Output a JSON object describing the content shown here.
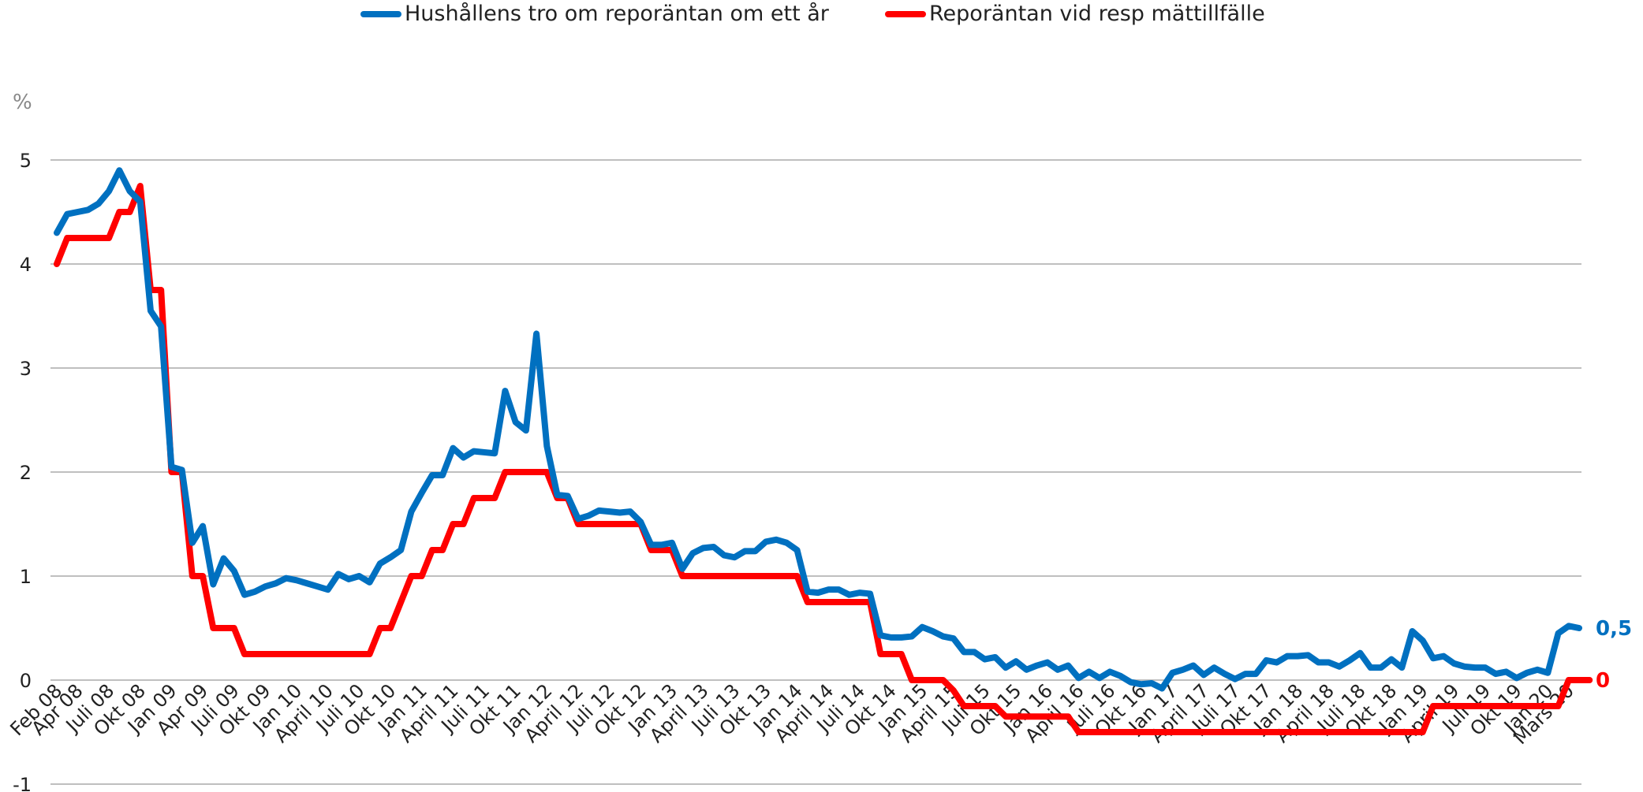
{
  "chart_data": {
    "type": "line",
    "title": "",
    "xlabel": "",
    "ylabel": "%",
    "ylim": [
      -1,
      5
    ],
    "yticks": [
      -1,
      0,
      1,
      2,
      3,
      4,
      5
    ],
    "ytick_labels": [
      "-1",
      "0",
      "1",
      "2",
      "3",
      "4",
      "5"
    ],
    "grid": true,
    "legend_position": "top-center",
    "x_tick_labels": [
      "Feb 08",
      "Apr 08",
      "Juli 08",
      "Okt 08",
      "Jan 09",
      "Apr 09",
      "Juli 09",
      "Okt 09",
      "Jan 10",
      "April 10",
      "Juli 10",
      "Okt 10",
      "Jan 11",
      "April 11",
      "Juli 11",
      "Okt 11",
      "Jan 12",
      "April 12",
      "Juli 12",
      "Okt 12",
      "Jan 13",
      "April 13",
      "Juli 13",
      "Okt 13",
      "Jan 14",
      "April 14",
      "Juli 14",
      "Okt 14",
      "Jan 15",
      "April 15",
      "Juli 15",
      "Okt 15",
      "Jan 16",
      "April 16",
      "Juli 16",
      "Okt 16",
      "Jan 17",
      "April 17",
      "Juli 17",
      "Okt 17",
      "Jan 18",
      "April 18",
      "Juli 18",
      "Okt 18",
      "Jan 19",
      "April 19",
      "Juli 19",
      "Okt 19",
      "Jan 20",
      "Mars 20"
    ],
    "x_tick_months": [
      0,
      2,
      5,
      8,
      11,
      14,
      17,
      20,
      23,
      26,
      29,
      32,
      35,
      38,
      41,
      44,
      47,
      50,
      53,
      56,
      59,
      62,
      65,
      68,
      71,
      74,
      77,
      80,
      83,
      86,
      89,
      92,
      95,
      98,
      101,
      104,
      107,
      110,
      113,
      116,
      119,
      122,
      125,
      128,
      131,
      134,
      137,
      140,
      143,
      145
    ],
    "x_start": "Feb 08",
    "series": [
      {
        "name": "Hushållens tro om reporäntan om ett år",
        "color": "#0070C0",
        "end_label": "0,5",
        "values": [
          4.3,
          4.48,
          4.5,
          4.52,
          4.58,
          4.7,
          4.9,
          4.7,
          4.6,
          3.55,
          3.4,
          2.05,
          2.02,
          1.32,
          1.48,
          0.92,
          1.17,
          1.05,
          0.82,
          0.85,
          0.9,
          0.93,
          0.98,
          0.96,
          0.93,
          0.9,
          0.87,
          1.02,
          0.97,
          1.0,
          0.94,
          1.12,
          1.18,
          1.25,
          1.62,
          1.8,
          1.97,
          1.97,
          2.23,
          2.14,
          2.2,
          2.19,
          2.18,
          2.78,
          2.48,
          2.4,
          3.33,
          2.25,
          1.78,
          1.77,
          1.55,
          1.58,
          1.63,
          1.62,
          1.61,
          1.62,
          1.52,
          1.3,
          1.3,
          1.32,
          1.07,
          1.22,
          1.27,
          1.28,
          1.2,
          1.18,
          1.24,
          1.24,
          1.33,
          1.35,
          1.32,
          1.25,
          0.85,
          0.84,
          0.87,
          0.87,
          0.82,
          0.84,
          0.83,
          0.43,
          0.41,
          0.41,
          0.42,
          0.51,
          0.47,
          0.42,
          0.4,
          0.27,
          0.27,
          0.2,
          0.22,
          0.12,
          0.18,
          0.1,
          0.14,
          0.17,
          0.1,
          0.14,
          0.02,
          0.08,
          0.02,
          0.08,
          0.04,
          -0.02,
          -0.04,
          -0.03,
          -0.08,
          0.07,
          0.1,
          0.14,
          0.05,
          0.12,
          0.06,
          0.01,
          0.06,
          0.06,
          0.19,
          0.17,
          0.23,
          0.23,
          0.24,
          0.17,
          0.17,
          0.13,
          0.19,
          0.26,
          0.12,
          0.12,
          0.2,
          0.12,
          0.47,
          0.38,
          0.21,
          0.23,
          0.16,
          0.13,
          0.12,
          0.12,
          0.06,
          0.08,
          0.02,
          0.07,
          0.1,
          0.07,
          0.45,
          0.52,
          0.5
        ]
      },
      {
        "name": "Reporäntan vid resp mättillfälle",
        "color": "#FF0000",
        "end_label": "0",
        "values": [
          4.0,
          4.25,
          4.25,
          4.25,
          4.25,
          4.25,
          4.5,
          4.5,
          4.75,
          3.75,
          3.75,
          2.0,
          2.0,
          1.0,
          1.0,
          0.5,
          0.5,
          0.5,
          0.25,
          0.25,
          0.25,
          0.25,
          0.25,
          0.25,
          0.25,
          0.25,
          0.25,
          0.25,
          0.25,
          0.25,
          0.25,
          0.5,
          0.5,
          0.75,
          1.0,
          1.0,
          1.25,
          1.25,
          1.5,
          1.5,
          1.75,
          1.75,
          1.75,
          2.0,
          2.0,
          2.0,
          2.0,
          2.0,
          1.75,
          1.75,
          1.5,
          1.5,
          1.5,
          1.5,
          1.5,
          1.5,
          1.5,
          1.25,
          1.25,
          1.25,
          1.0,
          1.0,
          1.0,
          1.0,
          1.0,
          1.0,
          1.0,
          1.0,
          1.0,
          1.0,
          1.0,
          1.0,
          0.75,
          0.75,
          0.75,
          0.75,
          0.75,
          0.75,
          0.75,
          0.25,
          0.25,
          0.25,
          0.0,
          0.0,
          0.0,
          0.0,
          -0.1,
          -0.25,
          -0.25,
          -0.25,
          -0.25,
          -0.35,
          -0.35,
          -0.35,
          -0.35,
          -0.35,
          -0.35,
          -0.35,
          -0.5,
          -0.5,
          -0.5,
          -0.5,
          -0.5,
          -0.5,
          -0.5,
          -0.5,
          -0.5,
          -0.5,
          -0.5,
          -0.5,
          -0.5,
          -0.5,
          -0.5,
          -0.5,
          -0.5,
          -0.5,
          -0.5,
          -0.5,
          -0.5,
          -0.5,
          -0.5,
          -0.5,
          -0.5,
          -0.5,
          -0.5,
          -0.5,
          -0.5,
          -0.5,
          -0.5,
          -0.5,
          -0.5,
          -0.5,
          -0.25,
          -0.25,
          -0.25,
          -0.25,
          -0.25,
          -0.25,
          -0.25,
          -0.25,
          -0.25,
          -0.25,
          -0.25,
          -0.25,
          -0.25,
          0.0,
          0.0,
          0.0
        ]
      }
    ]
  },
  "colors": {
    "grid": "#BFBFBF",
    "axis_text": "#222222",
    "unit_text": "#888888"
  }
}
